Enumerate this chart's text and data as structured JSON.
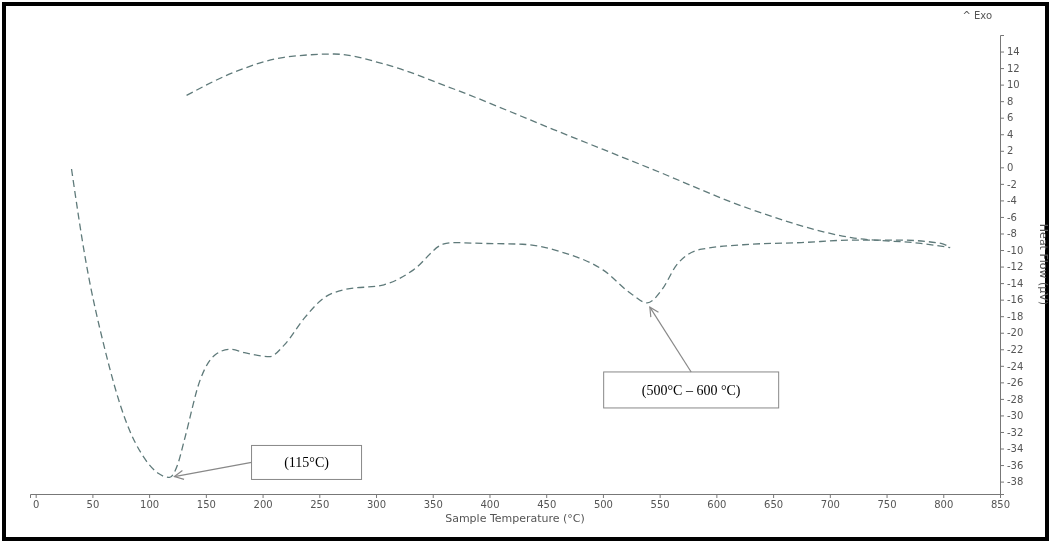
{
  "chart_data": {
    "type": "line",
    "xlabel": "Sample Temperature (°C)",
    "ylabel": "Heat Flow (µV)",
    "xlim": [
      -5,
      850
    ],
    "xticks": [
      0,
      50,
      100,
      150,
      200,
      250,
      300,
      350,
      400,
      450,
      500,
      550,
      600,
      650,
      700,
      750,
      800,
      850
    ],
    "ylim": [
      -39.5,
      16
    ],
    "yticks": [
      14,
      12,
      10,
      8,
      6,
      4,
      2,
      0,
      -2,
      -4,
      -6,
      -8,
      -10,
      -12,
      -14,
      -16,
      -18,
      -20,
      -22,
      -24,
      -26,
      -28,
      -30,
      -32,
      -34,
      -36,
      -38
    ],
    "line_style": "dashed",
    "grid": false,
    "legend": false,
    "series": [
      {
        "color": "#5f7a7a",
        "x": [
          31.6,
          44,
          61,
          79,
          96,
          108,
          118,
          125,
          131,
          145,
          158,
          171,
          184,
          206,
          219,
          237,
          254,
          272,
          307,
          333,
          359,
          368,
          394,
          429,
          465,
          500,
          526,
          539,
          552,
          565,
          587,
          631,
          675,
          719,
          762,
          798,
          806
        ],
        "values": [
          -0.2,
          -11.2,
          -22,
          -30.5,
          -35.2,
          -37,
          -37.5,
          -36,
          -33,
          -25.7,
          -22.7,
          -22,
          -22.4,
          -22.9,
          -21.5,
          -18.2,
          -15.8,
          -14.8,
          -14.2,
          -12.4,
          -9.3,
          -9.1,
          -9.2,
          -9.3,
          -10.3,
          -12.4,
          -15.4,
          -16.4,
          -14.8,
          -11.8,
          -9.9,
          -9.3,
          -9.1,
          -8.8,
          -8.8,
          -9.2,
          -9.7
        ]
      },
      {
        "color": "#5f7a7a",
        "x": [
          133,
          175,
          219,
          263,
          307,
          368,
          456,
          543,
          631,
          719,
          780,
          806
        ],
        "values": [
          8.7,
          11.5,
          13.3,
          13.7,
          12.5,
          9.5,
          4.6,
          -0.2,
          -5.1,
          -8.5,
          -9.2,
          -9.7
        ]
      }
    ],
    "annotations": [
      "(115°C)",
      {
        "text": "(500°C – 600 °C)",
        "x": 539,
        "y": -16.4
      },
      "^ Exo"
    ]
  }
}
